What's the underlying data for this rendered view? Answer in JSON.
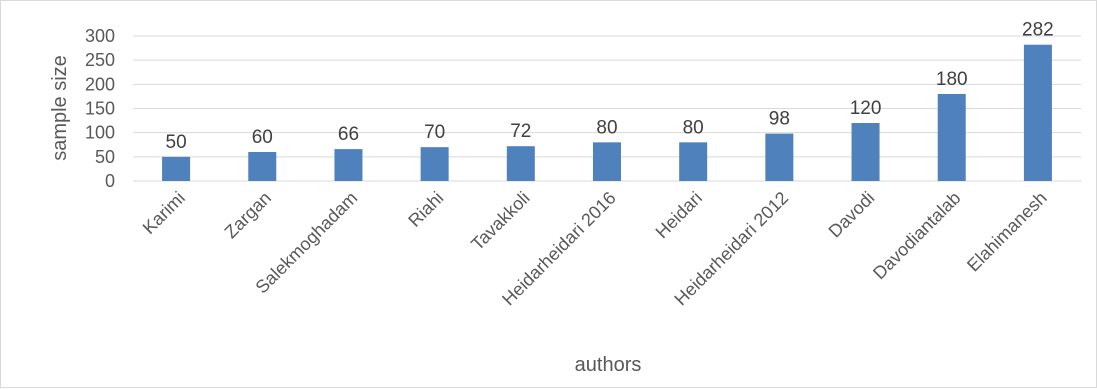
{
  "chart_data": {
    "type": "bar",
    "categories": [
      "Karimi",
      "Zargan",
      "Salekmoghadam",
      "Riahi",
      "Tavakkoli",
      "Heidarheidari 2016",
      "Heidari",
      "Heidarheidari 2012",
      "Davodi",
      "Davodiantalab",
      "Elahimanesh"
    ],
    "values": [
      50,
      60,
      66,
      70,
      72,
      80,
      80,
      98,
      120,
      180,
      282
    ],
    "title": "",
    "xlabel": "authors",
    "ylabel": "sample size",
    "ylim": [
      0,
      300
    ],
    "yticks": [
      0,
      50,
      100,
      150,
      200,
      250,
      300
    ],
    "grid": true,
    "bar_color": "#4f81bd",
    "data_labels": true
  }
}
